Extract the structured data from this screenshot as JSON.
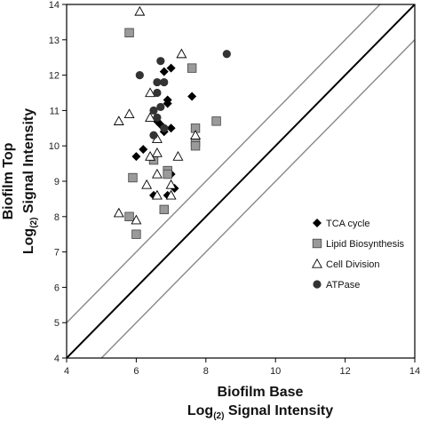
{
  "chart_data": {
    "type": "scatter",
    "xlabel": {
      "line1": "Biofilm Base",
      "line2_pre": "Log",
      "line2_sub": "(2)",
      "line2_post": " Signal Intensity"
    },
    "ylabel": {
      "line1": "Biofilm Top",
      "line2_pre": "Log",
      "line2_sub": "(2)",
      "line2_post": " Signal Intensity"
    },
    "xlim": [
      4,
      14
    ],
    "ylim": [
      4,
      14
    ],
    "xticks": [
      4,
      6,
      8,
      10,
      12,
      14
    ],
    "yticks": [
      4,
      5,
      6,
      7,
      8,
      9,
      10,
      11,
      12,
      13,
      14
    ],
    "grid": false,
    "legend_position": "bottom-right",
    "reference_lines": [
      {
        "name": "y=x",
        "offset": 0,
        "color": "#000000"
      },
      {
        "name": "y=x+1",
        "offset": 1,
        "color": "#888888"
      },
      {
        "name": "y=x-1",
        "offset": -1,
        "color": "#888888"
      }
    ],
    "series": [
      {
        "name": "TCA cycle",
        "marker": "diamond",
        "color": "#000000",
        "points": [
          [
            6.2,
            9.9
          ],
          [
            6.0,
            9.7
          ],
          [
            6.5,
            9.6
          ],
          [
            6.6,
            10.7
          ],
          [
            6.7,
            10.6
          ],
          [
            6.9,
            11.3
          ],
          [
            6.9,
            11.2
          ],
          [
            6.8,
            10.4
          ],
          [
            7.0,
            10.5
          ],
          [
            7.0,
            12.2
          ],
          [
            6.8,
            12.1
          ],
          [
            7.6,
            11.4
          ],
          [
            7.1,
            8.8
          ],
          [
            6.9,
            8.6
          ],
          [
            6.5,
            8.6
          ],
          [
            7.0,
            9.2
          ]
        ]
      },
      {
        "name": "Lipid Biosynthesis",
        "marker": "square",
        "color": "#9a9a9a",
        "points": [
          [
            5.8,
            13.2
          ],
          [
            7.6,
            12.2
          ],
          [
            7.7,
            10.5
          ],
          [
            8.3,
            10.7
          ],
          [
            7.7,
            10.1
          ],
          [
            7.7,
            10.0
          ],
          [
            6.9,
            9.3
          ],
          [
            6.5,
            9.6
          ],
          [
            5.9,
            9.1
          ],
          [
            6.8,
            8.2
          ],
          [
            5.8,
            8.0
          ],
          [
            6.0,
            7.5
          ],
          [
            6.9,
            9.2
          ]
        ]
      },
      {
        "name": "Cell Division",
        "marker": "triangle",
        "color": "#ffffff",
        "points": [
          [
            6.1,
            13.8
          ],
          [
            7.3,
            12.6
          ],
          [
            6.4,
            11.5
          ],
          [
            5.8,
            10.9
          ],
          [
            5.5,
            10.7
          ],
          [
            6.4,
            10.8
          ],
          [
            6.6,
            10.2
          ],
          [
            7.7,
            10.3
          ],
          [
            6.6,
            9.8
          ],
          [
            6.4,
            9.7
          ],
          [
            7.2,
            9.7
          ],
          [
            6.6,
            9.2
          ],
          [
            7.0,
            8.9
          ],
          [
            6.6,
            8.6
          ],
          [
            6.3,
            8.9
          ],
          [
            6.0,
            7.9
          ],
          [
            5.5,
            8.1
          ],
          [
            7.0,
            8.6
          ]
        ]
      },
      {
        "name": "ATPase",
        "marker": "circle",
        "color": "#333333",
        "points": [
          [
            6.1,
            12.0
          ],
          [
            6.7,
            12.4
          ],
          [
            6.8,
            11.8
          ],
          [
            6.6,
            11.5
          ],
          [
            6.7,
            11.1
          ],
          [
            6.5,
            11.0
          ],
          [
            6.6,
            10.8
          ],
          [
            6.8,
            10.5
          ],
          [
            6.5,
            10.3
          ],
          [
            8.6,
            12.6
          ],
          [
            6.6,
            11.8
          ]
        ]
      }
    ]
  }
}
